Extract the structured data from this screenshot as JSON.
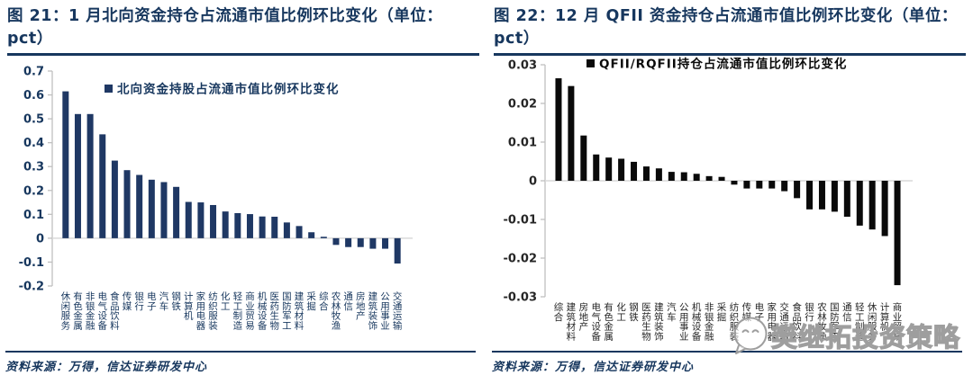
{
  "colors": {
    "accent_navy": "#17375E",
    "bar_navy": "#1F3864",
    "bar_black": "#0A0A0A",
    "axis_gray": "#BFBFBF",
    "zero_line_gray": "#D9D9D9",
    "watermark_gray": "#9E9E9E"
  },
  "panels": [
    {
      "title": "图  21：1 月北向资金持仓占流通市值比例环比变化（单位：pct）",
      "source": "资料来源：万得，信达证券研发中心"
    },
    {
      "title": "图  22：12 月 QFII 资金持仓占流通市值比例环比变化（单位：pct）",
      "source": "资料来源：万得，信达证券研发中心"
    }
  ],
  "watermark": {
    "text": "樊继拓投资策略",
    "icon": "chat-face-icon"
  },
  "chart_data": [
    {
      "type": "bar",
      "title": "图 21：1 月北向资金持仓占流通市值比例环比变化（单位：pct）",
      "legend": "北向资金持股占流通市值比例环比变化",
      "legend_position": "top-center",
      "grid": false,
      "ylim": [
        -0.2,
        0.7
      ],
      "yticks": [
        "0.7",
        "0.6",
        "0.5",
        "0.4",
        "0.3",
        "0.2",
        "0.1",
        "0",
        "-0.1",
        "-0.2"
      ],
      "categories": [
        "休闲服务",
        "有色金属",
        "非银金融",
        "电气设备",
        "食品饮料",
        "传媒",
        "银行",
        "电子",
        "汽车",
        "钢铁",
        "计算机",
        "家用电器",
        "纺织服装",
        "化工",
        "轻工制造",
        "商业贸易",
        "机械设备",
        "医药生物",
        "国防军工",
        "建筑材料",
        "采掘",
        "综合",
        "农林牧渔",
        "通信",
        "房地产",
        "建筑装饰",
        "公用事业",
        "交通运输"
      ],
      "values": [
        0.615,
        0.52,
        0.52,
        0.435,
        0.325,
        0.285,
        0.265,
        0.245,
        0.235,
        0.215,
        0.152,
        0.15,
        0.139,
        0.112,
        0.105,
        0.101,
        0.091,
        0.09,
        0.066,
        0.051,
        0.025,
        0.006,
        -0.028,
        -0.037,
        -0.037,
        -0.044,
        -0.044,
        -0.106
      ],
      "bar_color": "#1F3864",
      "legend_color": "#17375E",
      "tick_color": "#17375E",
      "xlabel_color": "#17375E",
      "axis_color": "#BFBFBF",
      "zero_line_color": "#D9D9D9"
    },
    {
      "type": "bar",
      "title": "图 22：12 月 QFII 资金持仓占流通市值比例环比变化（单位：pct）",
      "legend": "QFII/RQFII持仓占流通市值比例环比变化",
      "legend_position": "top-center",
      "grid": false,
      "ylim": [
        -0.03,
        0.03
      ],
      "yticks": [
        "0.03",
        "0.02",
        "0.01",
        "0",
        "-0.01",
        "-0.02",
        "-0.03"
      ],
      "categories": [
        "综合",
        "建筑材料",
        "房地产",
        "电气设备",
        "有色金属",
        "化工",
        "钢铁",
        "医药生物",
        "建筑装饰",
        "汽车",
        "公用事业",
        "机械设备",
        "非银金融",
        "采掘",
        "纺织服装",
        "传媒",
        "电子",
        "家用电器",
        "交通运输",
        "食品饮料",
        "银行",
        "农林牧渔",
        "国防军工",
        "通信",
        "轻工制造",
        "休闲服务",
        "计算机",
        "商业贸易"
      ],
      "values": [
        0.0265,
        0.0245,
        0.0117,
        0.0068,
        0.006,
        0.0057,
        0.0049,
        0.0037,
        0.0032,
        0.0023,
        0.0022,
        0.0018,
        0.0012,
        0.001,
        -0.001,
        -0.002,
        -0.002,
        -0.002,
        -0.0027,
        -0.0045,
        -0.0074,
        -0.0074,
        -0.008,
        -0.0093,
        -0.0116,
        -0.0126,
        -0.0143,
        -0.027
      ],
      "bar_color": "#0A0A0A",
      "legend_color": "#0A0A0A",
      "tick_color": "#262626",
      "xlabel_color": "#262626",
      "axis_color": "#BFBFBF",
      "zero_line_color": "#D9D9D9"
    }
  ]
}
